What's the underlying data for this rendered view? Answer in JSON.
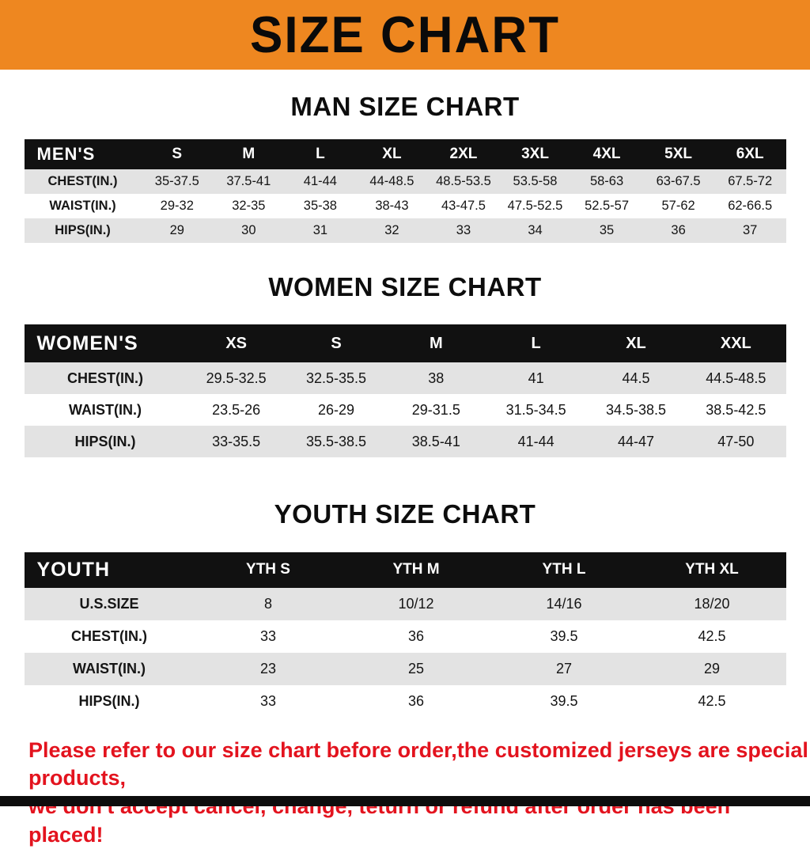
{
  "banner": {
    "title": "SIZE CHART"
  },
  "colors": {
    "banner_bg": "#ee8720",
    "header_bg": "#111111",
    "row_alt": "#e3e3e3",
    "footer_red": "#e3131e",
    "bottom_bar": "#0d0d0d"
  },
  "sections": [
    {
      "heading": "MAN SIZE CHART",
      "table": {
        "corner_label": "MEN'S",
        "columns": [
          "S",
          "M",
          "L",
          "XL",
          "2XL",
          "3XL",
          "4XL",
          "5XL",
          "6XL"
        ],
        "rows": [
          {
            "label": "CHEST(IN.)",
            "values": [
              "35-37.5",
              "37.5-41",
              "41-44",
              "44-48.5",
              "48.5-53.5",
              "53.5-58",
              "58-63",
              "63-67.5",
              "67.5-72"
            ]
          },
          {
            "label": "WAIST(IN.)",
            "values": [
              "29-32",
              "32-35",
              "35-38",
              "38-43",
              "43-47.5",
              "47.5-52.5",
              "52.5-57",
              "57-62",
              "62-66.5"
            ]
          },
          {
            "label": "HIPS(IN.)",
            "values": [
              "29",
              "30",
              "31",
              "32",
              "33",
              "34",
              "35",
              "36",
              "37"
            ]
          }
        ]
      }
    },
    {
      "heading": "WOMEN SIZE CHART",
      "table": {
        "corner_label": "WOMEN'S",
        "columns": [
          "XS",
          "S",
          "M",
          "L",
          "XL",
          "XXL"
        ],
        "rows": [
          {
            "label": "CHEST(IN.)",
            "values": [
              "29.5-32.5",
              "32.5-35.5",
              "38",
              "41",
              "44.5",
              "44.5-48.5"
            ]
          },
          {
            "label": "WAIST(IN.)",
            "values": [
              "23.5-26",
              "26-29",
              "29-31.5",
              "31.5-34.5",
              "34.5-38.5",
              "38.5-42.5"
            ]
          },
          {
            "label": "HIPS(IN.)",
            "values": [
              "33-35.5",
              "35.5-38.5",
              "38.5-41",
              "41-44",
              "44-47",
              "47-50"
            ]
          }
        ]
      }
    },
    {
      "heading": "YOUTH SIZE CHART",
      "table": {
        "corner_label": "YOUTH",
        "columns": [
          "YTH S",
          "YTH M",
          "YTH L",
          "YTH XL"
        ],
        "rows": [
          {
            "label": "U.S.SIZE",
            "values": [
              "8",
              "10/12",
              "14/16",
              "18/20"
            ]
          },
          {
            "label": "CHEST(IN.)",
            "values": [
              "33",
              "36",
              "39.5",
              "42.5"
            ]
          },
          {
            "label": "WAIST(IN.)",
            "values": [
              "23",
              "25",
              "27",
              "29"
            ]
          },
          {
            "label": "HIPS(IN.)",
            "values": [
              "33",
              "36",
              "39.5",
              "42.5"
            ]
          }
        ]
      }
    }
  ],
  "footer": {
    "line1": "Please refer to our size chart before order,the customized jerseys are special products,",
    "line2": "we don't accept cancel, change, teturn or refund after order has been placed!"
  }
}
